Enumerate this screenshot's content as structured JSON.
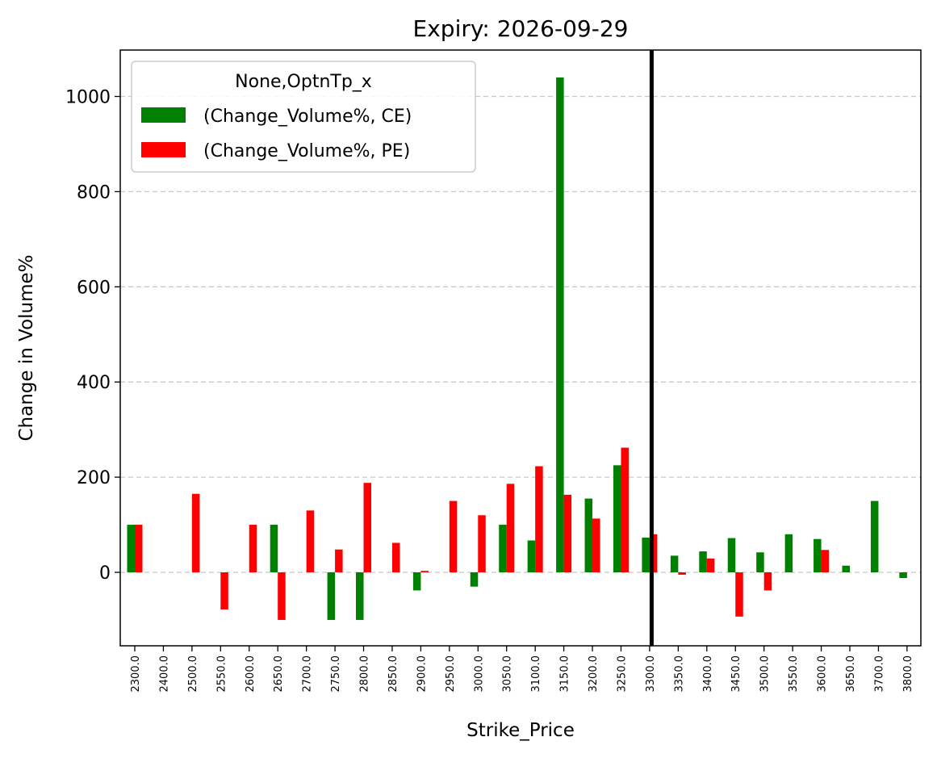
{
  "chart_data": {
    "type": "bar",
    "title": "Expiry: 2026-09-29",
    "xlabel": "Strike_Price",
    "ylabel": "Change in Volume%",
    "ylim": [
      -155,
      1100
    ],
    "yticks": [
      0,
      200,
      400,
      600,
      800,
      1000
    ],
    "grid": "horizontal dashed",
    "legend_position": "top-left",
    "legend_title": "None,OptnTp_x",
    "categories": [
      "2300.0",
      "2400.0",
      "2500.0",
      "2550.0",
      "2600.0",
      "2650.0",
      "2700.0",
      "2750.0",
      "2800.0",
      "2850.0",
      "2900.0",
      "2950.0",
      "3000.0",
      "3050.0",
      "3100.0",
      "3150.0",
      "3200.0",
      "3250.0",
      "3300.0",
      "3350.0",
      "3400.0",
      "3450.0",
      "3500.0",
      "3550.0",
      "3600.0",
      "3650.0",
      "3700.0",
      "3800.0"
    ],
    "series": [
      {
        "name": "(Change_Volume%, CE)",
        "color": "#008000",
        "values": [
          100,
          0,
          0,
          0,
          0,
          100,
          0,
          -100,
          -100,
          0,
          -38,
          0,
          -30,
          100,
          67,
          1040,
          155,
          225,
          73,
          35,
          44,
          72,
          42,
          80,
          70,
          14,
          150,
          -12
        ]
      },
      {
        "name": "(Change_Volume%, PE)",
        "color": "#ff0000",
        "values": [
          100,
          0,
          165,
          -78,
          100,
          -100,
          130,
          48,
          188,
          62,
          3,
          150,
          120,
          186,
          223,
          163,
          113,
          262,
          80,
          -5,
          29,
          -93,
          -38,
          0,
          47,
          0,
          0,
          0
        ]
      }
    ],
    "vline": {
      "category": "3300.0",
      "color": "#000000"
    }
  }
}
